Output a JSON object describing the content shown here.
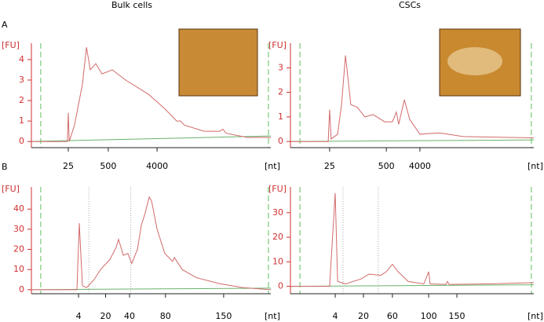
{
  "labels": {
    "columns": [
      "Bulk cells",
      "CSCs"
    ],
    "panels": [
      "A",
      "B"
    ]
  },
  "chart_data": [
    {
      "type": "line",
      "ylabel": "[FU]",
      "xlabel": "[nt]",
      "color": "#d26a6a",
      "x": [
        0,
        15,
        15.4,
        15.8,
        18,
        21.3,
        23,
        24.6,
        26.9,
        29.5,
        33.8,
        39.3,
        49,
        55.7,
        60.7,
        62.3,
        63.9,
        72.1,
        78.7,
        80,
        81.3,
        90.2,
        100
      ],
      "values": [
        0,
        0,
        1.4,
        0,
        0.8,
        2.8,
        4.6,
        3.5,
        3.8,
        3.3,
        3.5,
        3.0,
        2.3,
        1.6,
        1.0,
        1.0,
        0.8,
        0.5,
        0.5,
        0.6,
        0.4,
        0.2,
        0.2
      ],
      "ylim": [
        -0.3,
        4.8
      ],
      "yticks": [
        0,
        1,
        2,
        3,
        4
      ],
      "xlim": [
        0,
        100
      ],
      "xticks": [
        {
          "value": 15.4,
          "label": "25"
        },
        {
          "value": 32.1,
          "label": "500"
        },
        {
          "value": 52.5,
          "label": "4000"
        }
      ]
    },
    {
      "type": "line",
      "ylabel": "[FU]",
      "xlabel": "[nt]",
      "color": "#d26a6a",
      "x": [
        0,
        15.5,
        16.1,
        16.7,
        19.4,
        21,
        22.6,
        24.8,
        27.4,
        30.6,
        33.9,
        38.7,
        41.9,
        43.5,
        44.5,
        46.8,
        49,
        53.2,
        61.3,
        71,
        100
      ],
      "values": [
        0,
        0,
        1.3,
        0.1,
        0.3,
        1.5,
        3.5,
        1.5,
        1.4,
        1.0,
        1.1,
        0.8,
        0.8,
        1.2,
        0.7,
        1.7,
        0.9,
        0.3,
        0.35,
        0.2,
        0.15
      ],
      "ylim": [
        -0.25,
        4.0
      ],
      "yticks": [
        0,
        1,
        2,
        3
      ],
      "xlim": [
        0,
        100
      ],
      "xticks": [
        {
          "value": 16.1,
          "label": "25"
        },
        {
          "value": 39.4,
          "label": "500"
        },
        {
          "value": 53.2,
          "label": "4000"
        }
      ]
    },
    {
      "type": "line",
      "ylabel": "[FU]",
      "xlabel": "[nt]",
      "color": "#d26a6a",
      "x": [
        0,
        19,
        20,
        21.3,
        23,
        26.2,
        28.9,
        32.8,
        35.4,
        36.4,
        38.4,
        40.3,
        41.9,
        44.3,
        45.9,
        47.5,
        49.2,
        50.2,
        52.5,
        55.7,
        59,
        59.7,
        63,
        68.9,
        78.7,
        88.5,
        100
      ],
      "values": [
        0,
        0,
        33,
        2,
        1,
        5,
        10,
        15,
        21,
        25,
        17,
        18,
        13,
        20,
        32,
        38,
        46,
        44,
        30,
        18,
        14,
        16,
        10,
        6,
        3,
        1,
        0
      ],
      "ylim": [
        -2,
        51
      ],
      "yticks": [
        0,
        10,
        20,
        30,
        40
      ],
      "xlim": [
        0,
        100
      ],
      "xticks": [
        {
          "value": 19.7,
          "label": "4"
        },
        {
          "value": 31,
          "label": "20"
        },
        {
          "value": 41,
          "label": "40"
        },
        {
          "value": 56,
          "label": "80"
        },
        {
          "value": 80.3,
          "label": "150"
        }
      ]
    },
    {
      "type": "line",
      "ylabel": "[FU]",
      "xlabel": "[nt]",
      "color": "#d26a6a",
      "x": [
        0,
        16.1,
        18.4,
        19.4,
        22.6,
        29,
        32.3,
        37.1,
        39.4,
        41.9,
        44.2,
        48.4,
        54.8,
        56.8,
        57.4,
        63.9,
        64.5,
        65.2,
        80.6,
        100
      ],
      "values": [
        0,
        0,
        38,
        2,
        1,
        3,
        5,
        4.5,
        6,
        9,
        6,
        2,
        1,
        6,
        1,
        0.8,
        2,
        0.8,
        1,
        1.5
      ],
      "ylim": [
        -3,
        40.5
      ],
      "yticks": [
        0,
        10,
        20,
        30
      ],
      "xlim": [
        0,
        100
      ],
      "xticks": [
        {
          "value": 18.4,
          "label": "4"
        },
        {
          "value": 30,
          "label": "20"
        },
        {
          "value": 41.9,
          "label": "60"
        },
        {
          "value": 56.8,
          "label": "100"
        },
        {
          "value": 68.4,
          "label": "150"
        }
      ]
    }
  ]
}
